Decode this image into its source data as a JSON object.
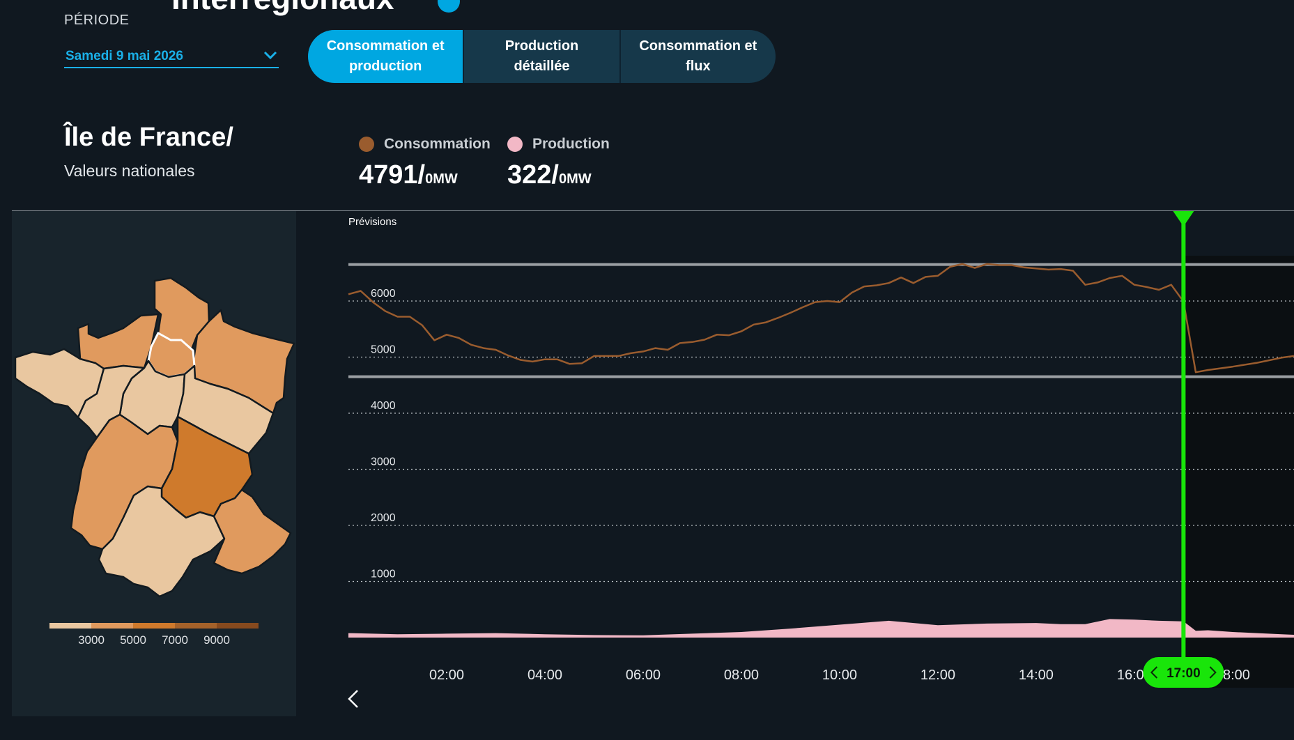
{
  "header": {
    "title": "Interrégionaux"
  },
  "period": {
    "label": "PÉRIODE",
    "date": "Samedi 9 mai 2026"
  },
  "tabs": [
    {
      "label": "Consommation et production",
      "active": true
    },
    {
      "label": "Production détaillée",
      "active": false
    },
    {
      "label": "Consommation et flux",
      "active": false
    }
  ],
  "region": {
    "name": "Île de France/",
    "subtitle": "Valeurs nationales"
  },
  "legend": {
    "consumption": {
      "label": "Consommation",
      "value": "4791/",
      "unit": "0MW",
      "color": "#9a5c2e"
    },
    "production": {
      "label": "Production",
      "value": "322/",
      "unit": "0MW",
      "color": "#f2b8c6"
    }
  },
  "map": {
    "scale_colors": [
      "#e9c7a0",
      "#e09a5e",
      "#cf7a2c",
      "#a5622a",
      "#874a1e"
    ],
    "scale_labels": [
      "3000",
      "5000",
      "7000",
      "9000"
    ]
  },
  "cursor": {
    "time": "17:00",
    "color": "#19e50a"
  },
  "chart_data": {
    "type": "area",
    "title": "Prévisions",
    "xlabel": "",
    "ylabel": "",
    "x_ticks": [
      "02:00",
      "04:00",
      "06:00",
      "08:00",
      "10:00",
      "12:00",
      "14:00",
      "16:00",
      "18:00"
    ],
    "y_ticks": [
      1000,
      2000,
      3000,
      4000,
      5000,
      6000
    ],
    "xlim": [
      0,
      19.25
    ],
    "ylim": [
      0,
      6800
    ],
    "reference_lines": [
      6650,
      4650
    ],
    "grid": true,
    "series": [
      {
        "name": "Consommation",
        "color": "#9a5c2e",
        "x": [
          0,
          0.25,
          0.5,
          0.75,
          1,
          1.25,
          1.5,
          1.75,
          2,
          2.25,
          2.5,
          2.75,
          3,
          3.25,
          3.5,
          3.75,
          4,
          4.25,
          4.5,
          4.75,
          5,
          5.25,
          5.5,
          5.75,
          6,
          6.25,
          6.5,
          6.75,
          7,
          7.25,
          7.5,
          7.75,
          8,
          8.25,
          8.5,
          8.75,
          9,
          9.25,
          9.5,
          9.75,
          10,
          10.25,
          10.5,
          10.75,
          11,
          11.25,
          11.5,
          11.75,
          12,
          12.25,
          12.5,
          12.75,
          13,
          13.25,
          13.5,
          13.75,
          14,
          14.25,
          14.5,
          14.75,
          15,
          15.25,
          15.5,
          15.75,
          16,
          16.25,
          16.5,
          16.75,
          17,
          17.25,
          17.5,
          18,
          18.5,
          19,
          19.25
        ],
        "values": [
          6120,
          6180,
          5980,
          5820,
          5720,
          5720,
          5570,
          5300,
          5400,
          5340,
          5220,
          5160,
          5130,
          5030,
          4950,
          4920,
          4960,
          4960,
          4880,
          4890,
          5020,
          5020,
          5020,
          5070,
          5100,
          5160,
          5130,
          5250,
          5270,
          5310,
          5400,
          5390,
          5460,
          5580,
          5620,
          5700,
          5790,
          5890,
          5980,
          6000,
          5980,
          6150,
          6260,
          6280,
          6320,
          6420,
          6320,
          6430,
          6450,
          6610,
          6660,
          6590,
          6660,
          6640,
          6640,
          6600,
          6580,
          6560,
          6570,
          6540,
          6290,
          6330,
          6410,
          6450,
          6290,
          6250,
          6200,
          6290,
          5990,
          4730,
          4770,
          4830,
          4900,
          4990,
          5020
        ]
      },
      {
        "name": "Production",
        "color": "#f2b8c6",
        "x": [
          0,
          1,
          2,
          3,
          4,
          5,
          6,
          7,
          8,
          9,
          10,
          11,
          12,
          13,
          14,
          14.5,
          15,
          15.5,
          16,
          16.5,
          17,
          17.25,
          17.5,
          18,
          18.5,
          19,
          19.25
        ],
        "values": [
          80,
          60,
          70,
          80,
          60,
          45,
          40,
          70,
          100,
          160,
          230,
          300,
          220,
          250,
          260,
          240,
          240,
          330,
          320,
          300,
          290,
          120,
          130,
          100,
          80,
          60,
          50
        ]
      }
    ]
  }
}
